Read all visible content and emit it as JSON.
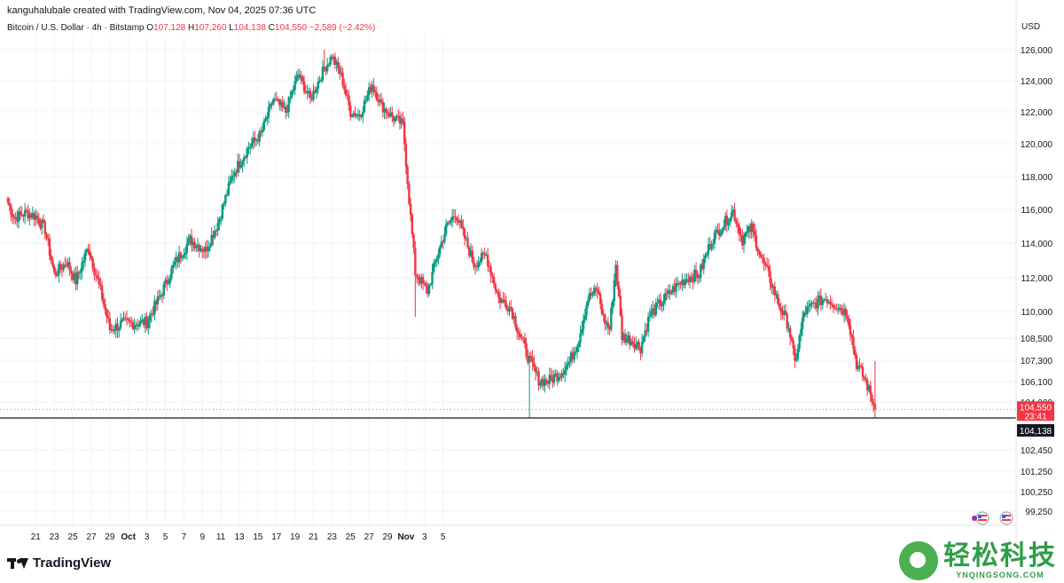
{
  "header": {
    "credit": "kanguhalubale created with TradingView.com, Nov 04, 2025 07:36 UTC",
    "symbol": "Bitcoin / U.S. Dollar · 4h · Bitstamp",
    "o_label": "O",
    "o_value": "107,128",
    "h_label": "H",
    "h_value": "107,260",
    "l_label": "L",
    "l_value": "104,138",
    "c_label": "C",
    "c_value": "104,550",
    "change": "−2,589 (−2.42%)"
  },
  "currency": "USD",
  "price_tag": {
    "price": "104,550",
    "countdown": "23:41"
  },
  "low_tag": "104,138",
  "footer": {
    "brand": "TradingView"
  },
  "watermark": {
    "cn": "轻松科技",
    "en": "YNQINGSONG.COM"
  },
  "colors": {
    "up": "#089981",
    "down": "#f23645",
    "line": "#131722",
    "grid": "#f0f3fa"
  },
  "chart_data": {
    "type": "candlestick",
    "series": [
      {
        "name": "Bitcoin / U.S. Dollar",
        "timeframe": "4h"
      }
    ],
    "y_ticks": [
      126000,
      124000,
      122000,
      120000,
      118000,
      116000,
      114000,
      112000,
      110000,
      108500,
      107300,
      106100,
      104900,
      102450,
      101250,
      100250,
      99250
    ],
    "y_tick_labels": [
      "126,000",
      "124,000",
      "122,000",
      "120,000",
      "118,000",
      "116,000",
      "114,000",
      "112,000",
      "110,000",
      "108,500",
      "107,300",
      "106,100",
      "104,900",
      "102,450",
      "101,250",
      "100,250",
      "99,250"
    ],
    "x_tick_labels": [
      "21",
      "23",
      "25",
      "27",
      "29",
      "Oct",
      "3",
      "5",
      "7",
      "9",
      "11",
      "13",
      "15",
      "17",
      "19",
      "21",
      "23",
      "25",
      "27",
      "29",
      "Nov",
      "3",
      "5"
    ],
    "horizontal_line": 104138,
    "last_price": 104550,
    "anchors": [
      [
        0,
        116400
      ],
      [
        4,
        115500
      ],
      [
        12,
        115800
      ],
      [
        18,
        115600
      ],
      [
        24,
        114800
      ],
      [
        30,
        112200
      ],
      [
        38,
        112900
      ],
      [
        44,
        111800
      ],
      [
        52,
        113800
      ],
      [
        60,
        111200
      ],
      [
        66,
        109000
      ],
      [
        74,
        109300
      ],
      [
        90,
        109400
      ],
      [
        98,
        110800
      ],
      [
        108,
        112800
      ],
      [
        118,
        114200
      ],
      [
        128,
        113600
      ],
      [
        136,
        115200
      ],
      [
        146,
        118200
      ],
      [
        156,
        119800
      ],
      [
        164,
        120600
      ],
      [
        172,
        122800
      ],
      [
        180,
        122000
      ],
      [
        188,
        124400
      ],
      [
        196,
        122800
      ],
      [
        204,
        124600
      ],
      [
        210,
        125600
      ],
      [
        216,
        124300
      ],
      [
        222,
        122000
      ],
      [
        228,
        121800
      ],
      [
        236,
        123800
      ],
      [
        242,
        122400
      ],
      [
        250,
        121600
      ],
      [
        256,
        121200
      ],
      [
        260,
        116600
      ],
      [
        264,
        112300
      ],
      [
        272,
        111200
      ],
      [
        278,
        113200
      ],
      [
        284,
        114900
      ],
      [
        290,
        115800
      ],
      [
        296,
        114300
      ],
      [
        302,
        112800
      ],
      [
        310,
        113300
      ],
      [
        318,
        110800
      ],
      [
        326,
        110200
      ],
      [
        332,
        108600
      ],
      [
        338,
        107300
      ],
      [
        344,
        106200
      ],
      [
        350,
        106100
      ],
      [
        358,
        106600
      ],
      [
        364,
        107200
      ],
      [
        370,
        108500
      ],
      [
        376,
        110800
      ],
      [
        382,
        111300
      ],
      [
        386,
        109600
      ],
      [
        390,
        109000
      ],
      [
        394,
        112800
      ],
      [
        398,
        108600
      ],
      [
        404,
        108400
      ],
      [
        410,
        108000
      ],
      [
        416,
        109800
      ],
      [
        424,
        110600
      ],
      [
        432,
        111400
      ],
      [
        440,
        112000
      ],
      [
        448,
        112200
      ],
      [
        456,
        114200
      ],
      [
        462,
        114900
      ],
      [
        470,
        115900
      ],
      [
        476,
        114200
      ],
      [
        482,
        114900
      ],
      [
        488,
        113200
      ],
      [
        494,
        111900
      ],
      [
        500,
        110300
      ],
      [
        506,
        109200
      ],
      [
        510,
        107100
      ],
      [
        516,
        109900
      ],
      [
        522,
        110400
      ],
      [
        530,
        110800
      ],
      [
        538,
        110300
      ],
      [
        544,
        109900
      ],
      [
        550,
        107100
      ],
      [
        556,
        106100
      ],
      [
        562,
        104550
      ]
    ]
  }
}
